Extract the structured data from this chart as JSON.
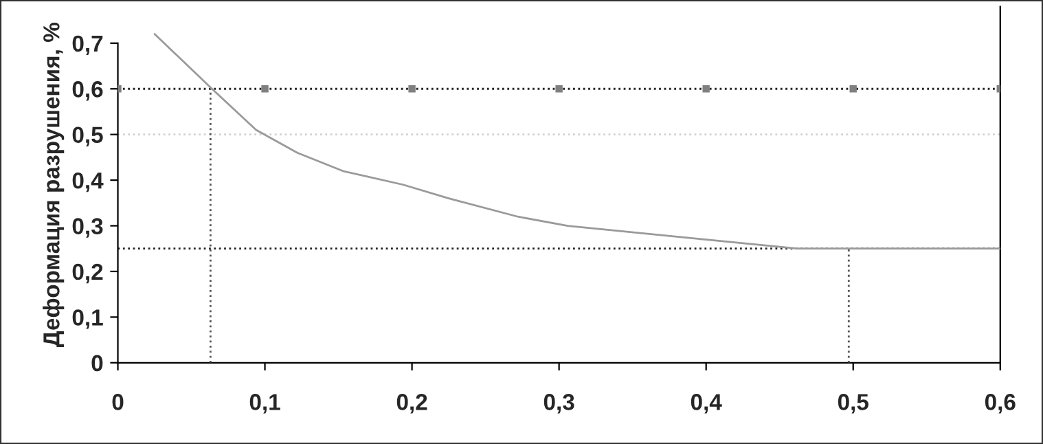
{
  "chart_data": {
    "type": "line",
    "ylabel": "Деформация разрушения, %",
    "series": [
      {
        "color": "#9a9a9a",
        "line_style": "solid",
        "x": [
          0.025,
          0.064,
          0.094,
          0.122,
          0.153,
          0.194,
          0.225,
          0.272,
          0.306,
          0.399,
          0.462,
          0.499,
          0.6
        ],
        "values": [
          0.72,
          0.6,
          0.51,
          0.46,
          0.42,
          0.39,
          0.36,
          0.32,
          0.3,
          0.27,
          0.25,
          0.25,
          0.25
        ]
      },
      {
        "type": "scatter",
        "color": "#808080",
        "marker": "square",
        "x": [
          0,
          0.1,
          0.2,
          0.3,
          0.4,
          0.5,
          0.6
        ],
        "values": [
          0.6,
          0.6,
          0.6,
          0.6,
          0.6,
          0.6,
          0.6
        ]
      },
      {
        "type": "line",
        "color": "#555555",
        "line_style": "dotted",
        "x": [
          0.063,
          0.063
        ],
        "values": [
          0,
          0.6
        ]
      },
      {
        "type": "line",
        "color": "#555555",
        "line_style": "dotted",
        "x": [
          0.497,
          0.497
        ],
        "values": [
          0,
          0.25
        ]
      }
    ],
    "ref_lines": [
      {
        "axis": "y",
        "value": 0.6,
        "color": "#222222",
        "line_style": "dotted"
      },
      {
        "axis": "y",
        "value": 0.5,
        "color": "#d0d0d0",
        "line_style": "dotted"
      },
      {
        "axis": "y",
        "value": 0.25,
        "color": "#222222",
        "line_style": "dotted"
      }
    ],
    "xlim": [
      0,
      0.6
    ],
    "xticks": [
      0,
      {
        "value": 0.1,
        "label": "0,1"
      },
      {
        "value": 0.2,
        "label": "0,2"
      },
      {
        "value": 0.3,
        "label": "0,3"
      },
      {
        "value": 0.4,
        "label": "0,4"
      },
      {
        "value": 0.5,
        "label": "0,5"
      },
      {
        "value": 0.6,
        "label": "0,6"
      }
    ],
    "ylim": [
      0,
      0.78
    ],
    "yticks": [
      0,
      {
        "value": 0.1,
        "label": "0,1"
      },
      {
        "value": 0.2,
        "label": "0,2"
      },
      {
        "value": 0.3,
        "label": "0,3"
      },
      {
        "value": 0.4,
        "label": "0,4"
      },
      {
        "value": 0.5,
        "label": "0,5"
      },
      {
        "value": 0.6,
        "label": "0,6"
      },
      {
        "value": 0.7,
        "label": "0,7"
      }
    ],
    "grid": false,
    "legend": false
  }
}
